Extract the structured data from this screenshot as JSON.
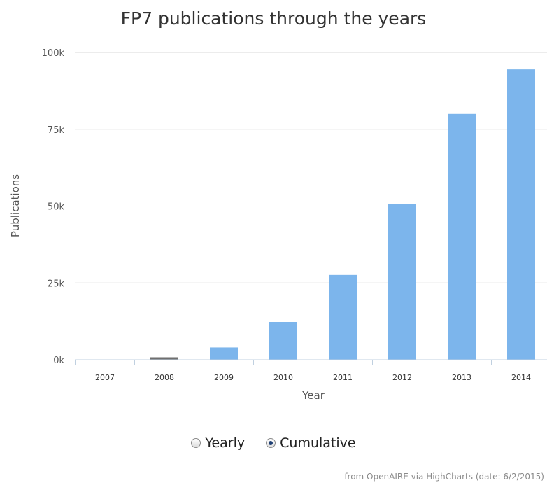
{
  "chart_data": {
    "type": "bar",
    "title": "FP7 publications through the years",
    "xlabel": "Year",
    "ylabel": "Publications",
    "categories": [
      "2007",
      "2008",
      "2009",
      "2010",
      "2011",
      "2012",
      "2013",
      "2014"
    ],
    "values": [
      0,
      800,
      4000,
      12300,
      27600,
      50600,
      80000,
      94500
    ],
    "ylim": [
      0,
      100000
    ],
    "yticks": [
      "0k",
      "25k",
      "50k",
      "75k",
      "100k"
    ],
    "grid": true,
    "bar_color": "#7cb5ec",
    "highlight_color": "#6f6f6f"
  },
  "controls": {
    "yearly_label": "Yearly",
    "cumulative_label": "Cumulative",
    "selected": "Cumulative"
  },
  "credit": "from OpenAIRE via HighCharts (date: 6/2/2015)"
}
